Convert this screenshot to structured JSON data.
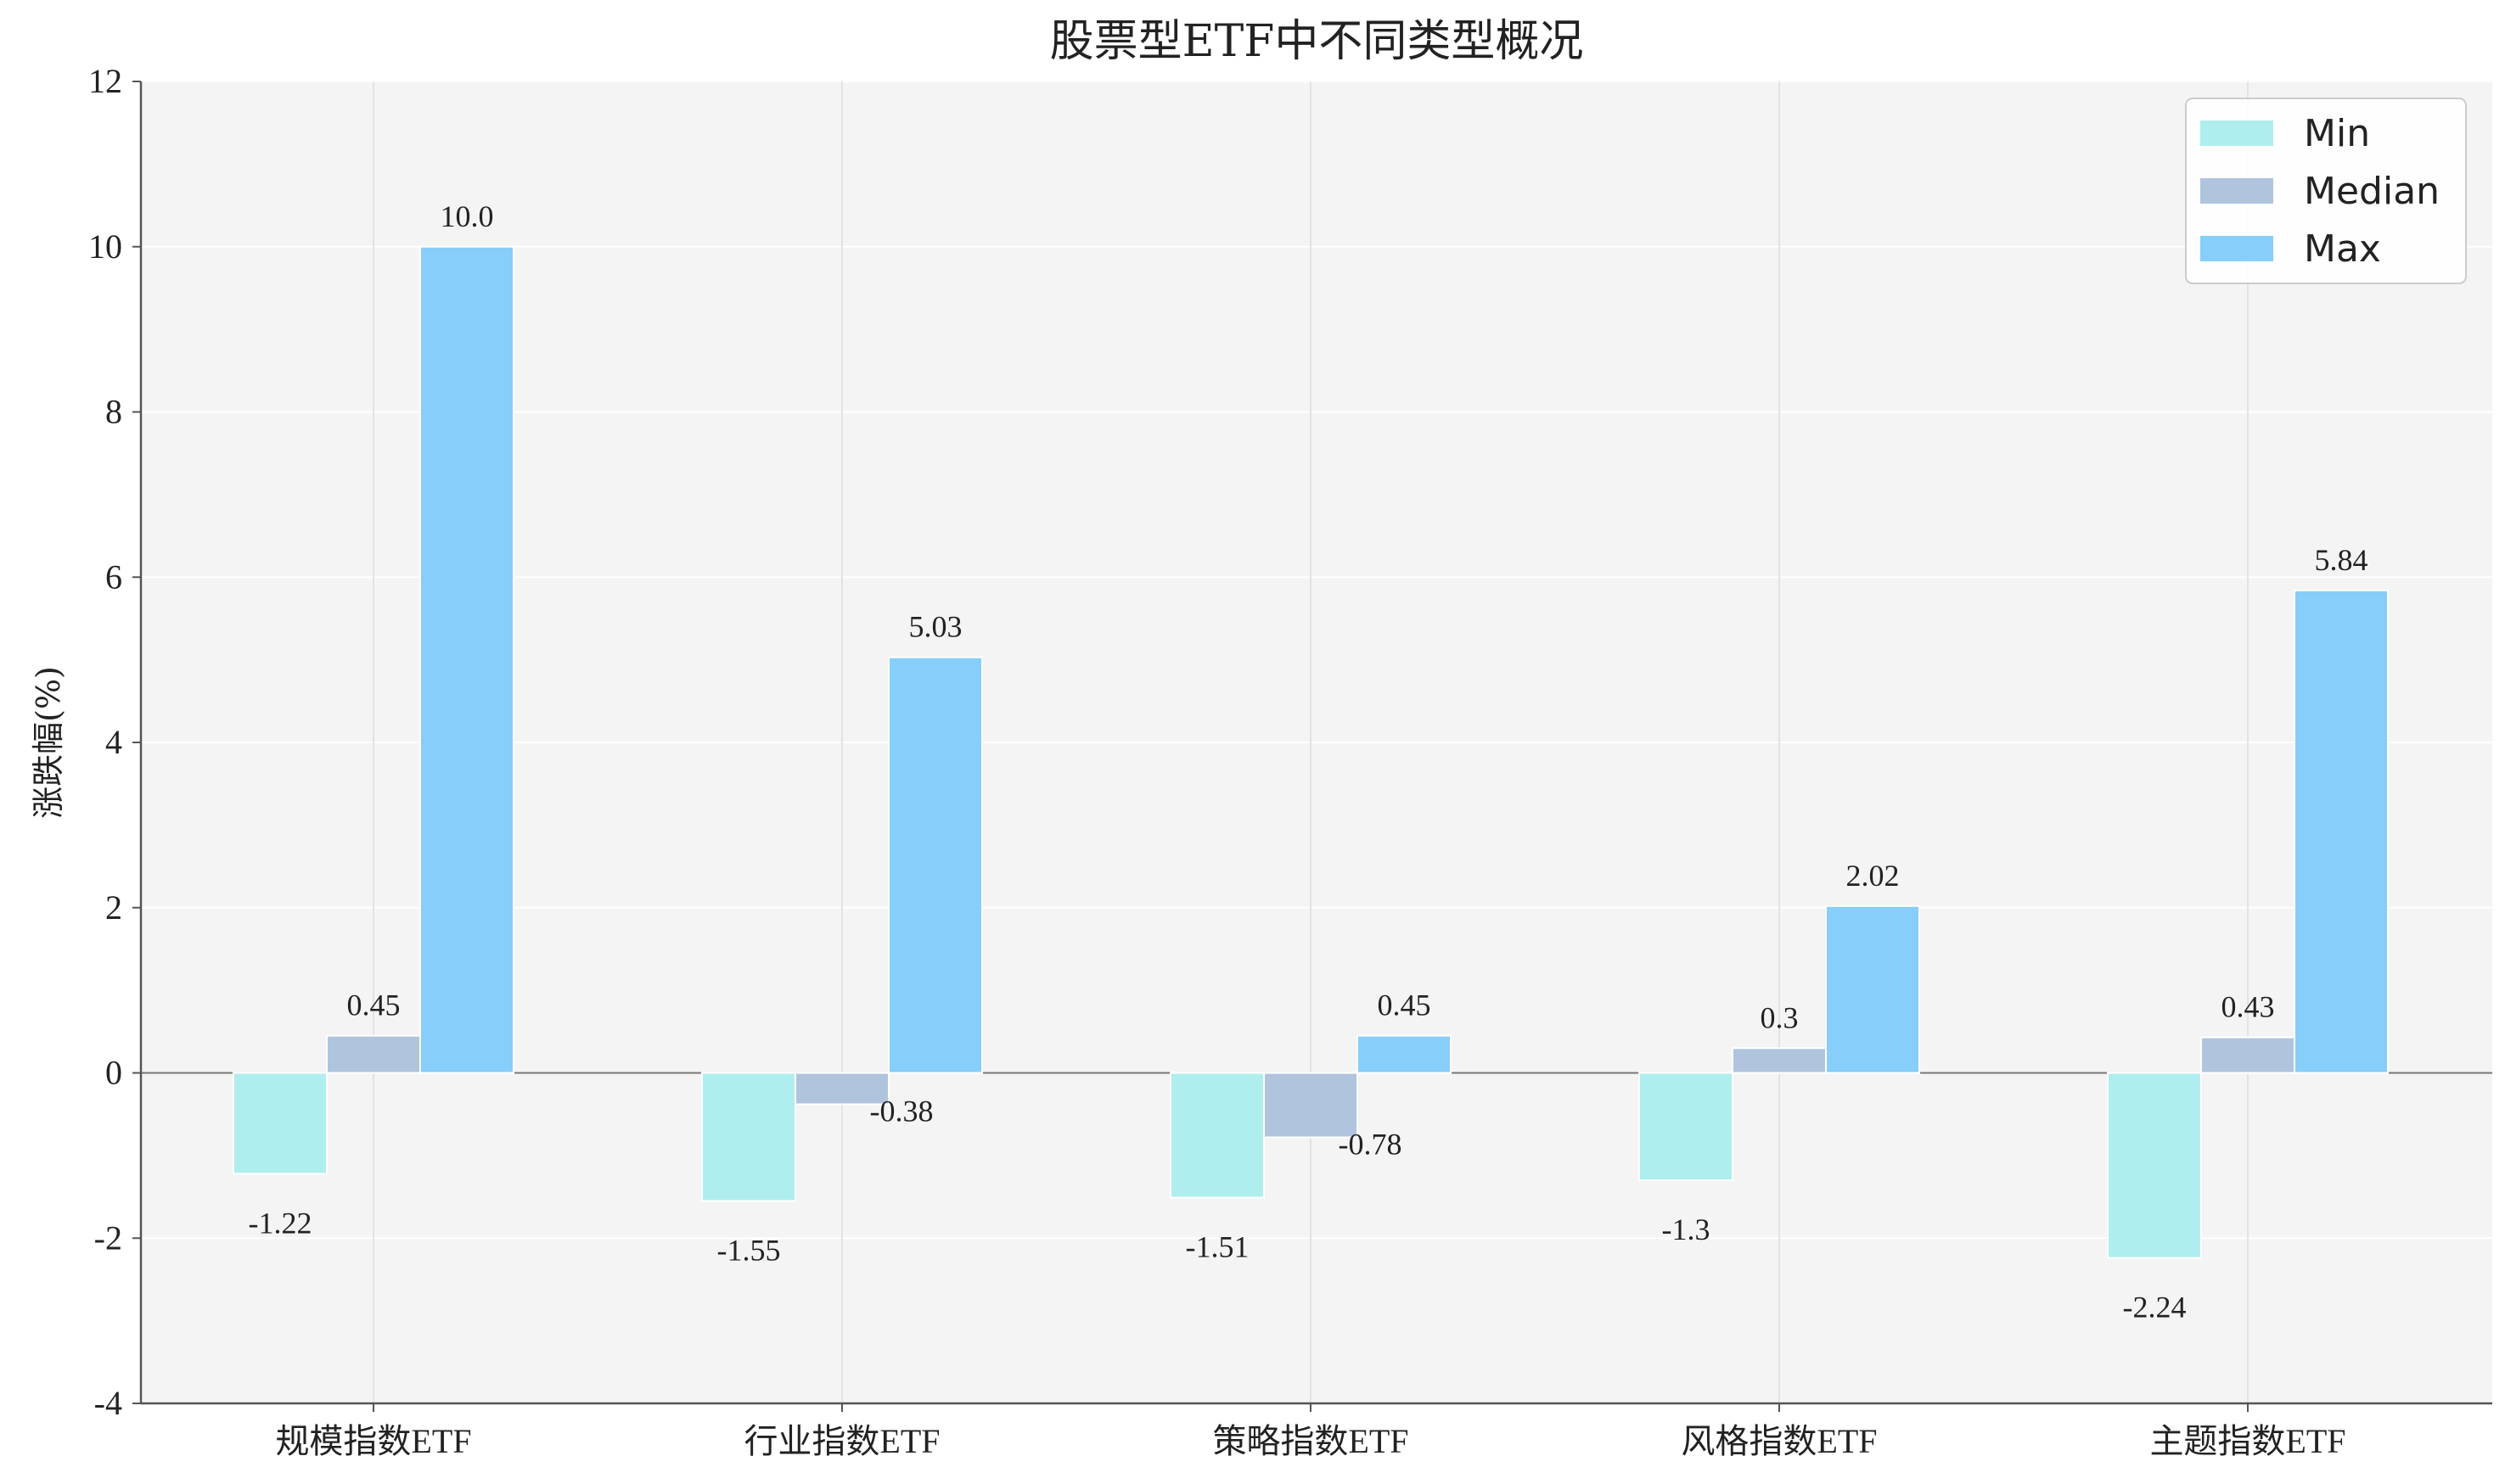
{
  "chart_data": {
    "type": "bar",
    "title": "股票型ETF中不同类型概况",
    "xlabel": "",
    "ylabel": "涨跌幅(%)",
    "categories": [
      "规模指数ETF",
      "行业指数ETF",
      "策略指数ETF",
      "风格指数ETF",
      "主题指数ETF"
    ],
    "series": [
      {
        "name": "Min",
        "color": "#afeeee",
        "values": [
          -1.22,
          -1.55,
          -1.51,
          -1.3,
          -2.24
        ],
        "labels": [
          "-1.22",
          "-1.55",
          "-1.51",
          "-1.3",
          "-2.24"
        ]
      },
      {
        "name": "Median",
        "color": "#b0c4de",
        "values": [
          0.45,
          -0.38,
          -0.78,
          0.3,
          0.43
        ],
        "labels": [
          "0.45",
          "-0.38",
          "-0.78",
          "0.3",
          "0.43"
        ]
      },
      {
        "name": "Max",
        "color": "#87cefa",
        "values": [
          10.0,
          5.03,
          0.45,
          2.02,
          5.84
        ],
        "labels": [
          "10.0",
          "5.03",
          "0.45",
          "2.02",
          "5.84"
        ]
      }
    ],
    "ylim": [
      -4,
      12
    ],
    "yticks": [
      -4,
      -2,
      0,
      2,
      4,
      6,
      8,
      10,
      12
    ],
    "ytick_labels": [
      "-4",
      "-2",
      "0",
      "2",
      "4",
      "6",
      "8",
      "10",
      "12"
    ],
    "grid": true,
    "legend": "top-right",
    "background": "#f4f4f4"
  }
}
